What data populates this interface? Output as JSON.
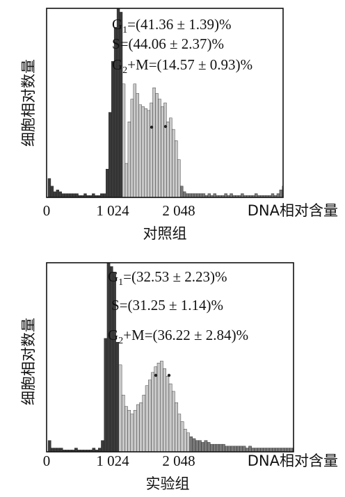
{
  "chart_data": [
    {
      "type": "histogram",
      "caption": "对照组",
      "ylabel": "细胞相对数量",
      "xlabel": "DNA相对含量",
      "xticks": [
        "0",
        "1 024",
        "2 048"
      ],
      "xtick_values": [
        0,
        1024,
        2048
      ],
      "xlim": [
        0,
        3500
      ],
      "ylim": [
        0,
        100
      ],
      "annotations": [
        {
          "phase": "G1",
          "value": "41.36 ± 1.39",
          "unit": "%"
        },
        {
          "phase": "S",
          "value": "44.06 ± 2.37",
          "unit": "%"
        },
        {
          "phase": "G2+M",
          "value": "14.57 ± 0.93",
          "unit": "%"
        }
      ],
      "bin_width": 40,
      "bins_x": [
        40,
        80,
        120,
        160,
        200,
        240,
        280,
        320,
        360,
        400,
        440,
        480,
        520,
        560,
        600,
        640,
        680,
        720,
        760,
        800,
        840,
        880,
        920,
        960,
        1000,
        1040,
        1080,
        1120,
        1160,
        1200,
        1240,
        1280,
        1320,
        1360,
        1400,
        1440,
        1480,
        1520,
        1560,
        1600,
        1640,
        1680,
        1720,
        1760,
        1800,
        1840,
        1880,
        1920,
        1960,
        2000,
        2040,
        2080,
        2120,
        2160,
        2200,
        2240,
        2280,
        2320,
        2360,
        2400,
        2440,
        2480,
        2520,
        2560,
        2600,
        2640,
        2680,
        2720,
        2760,
        2800,
        2840,
        2880,
        2920,
        2960,
        3000,
        3040,
        3080,
        3120,
        3160,
        3200,
        3240,
        3280,
        3320,
        3360,
        3400,
        3440
      ],
      "phase_x": [
        [
          0,
          1100
        ],
        [
          1100,
          1950
        ],
        [
          1950,
          3500
        ]
      ],
      "counts": [
        10,
        6,
        3,
        4,
        3,
        2,
        2,
        2,
        2,
        2,
        2,
        1,
        1,
        2,
        1,
        1,
        2,
        1,
        1,
        2,
        2,
        15,
        45,
        72,
        90,
        100,
        98,
        60,
        18,
        40,
        52,
        60,
        55,
        49,
        48,
        47,
        46,
        50,
        58,
        55,
        52,
        48,
        50,
        40,
        42,
        36,
        30,
        20,
        6,
        3,
        2,
        2,
        2,
        2,
        2,
        2,
        2,
        1,
        2,
        1,
        2,
        1,
        1,
        1,
        2,
        1,
        2,
        1,
        1,
        1,
        2,
        1,
        1,
        1,
        1,
        2,
        1,
        1,
        1,
        1,
        1,
        2,
        1,
        2,
        4,
        6
      ],
      "colors": {
        "G1": "#3b3b3b",
        "S": "#c9c9c9",
        "G2M": "#7a7a7a"
      }
    },
    {
      "type": "histogram",
      "caption": "实验组",
      "ylabel": "细胞相对数量",
      "xlabel": "DNA相对含量",
      "xticks": [
        "0",
        "1 024",
        "2 048"
      ],
      "xtick_values": [
        0,
        1024,
        2048
      ],
      "xlim": [
        0,
        3500
      ],
      "ylim": [
        0,
        100
      ],
      "annotations": [
        {
          "phase": "G1",
          "value": "32.53 ± 2.23",
          "unit": "%"
        },
        {
          "phase": "S",
          "value": "31.25 ± 1.14",
          "unit": "%"
        },
        {
          "phase": "G2+M",
          "value": "36.22 ± 2.84",
          "unit": "%"
        }
      ],
      "bin_width": 40,
      "bins_x": [
        40,
        80,
        120,
        160,
        200,
        240,
        280,
        320,
        360,
        400,
        440,
        480,
        520,
        560,
        600,
        640,
        680,
        720,
        760,
        800,
        840,
        880,
        920,
        960,
        1000,
        1040,
        1080,
        1120,
        1160,
        1200,
        1240,
        1280,
        1320,
        1360,
        1400,
        1440,
        1480,
        1520,
        1560,
        1600,
        1640,
        1680,
        1720,
        1760,
        1800,
        1840,
        1880,
        1920,
        1960,
        2000,
        2040,
        2080,
        2120,
        2160,
        2200,
        2240,
        2280,
        2320,
        2360,
        2400,
        2440,
        2480,
        2520,
        2560,
        2600,
        2640,
        2680,
        2720,
        2760,
        2800,
        2840,
        2880,
        2920,
        2960,
        3000,
        3040,
        3080,
        3120,
        3160,
        3200,
        3240,
        3280,
        3320,
        3360,
        3400,
        3440
      ],
      "phase_x": [
        [
          0,
          1000
        ],
        [
          1000,
          1950
        ],
        [
          1950,
          3500
        ]
      ],
      "counts": [
        6,
        2,
        2,
        2,
        2,
        1,
        1,
        1,
        1,
        2,
        1,
        1,
        1,
        1,
        1,
        2,
        1,
        2,
        6,
        60,
        100,
        98,
        95,
        58,
        46,
        30,
        24,
        22,
        20,
        22,
        25,
        26,
        30,
        35,
        38,
        42,
        45,
        47,
        48,
        44,
        40,
        36,
        32,
        26,
        20,
        16,
        12,
        10,
        8,
        7,
        6,
        6,
        5,
        6,
        5,
        4,
        4,
        4,
        4,
        4,
        3,
        3,
        3,
        3,
        3,
        3,
        3,
        2,
        3,
        2,
        2,
        2,
        2,
        2,
        2,
        2,
        2,
        2,
        2,
        2,
        2,
        2,
        2,
        2,
        14,
        6
      ],
      "colors": {
        "G1": "#3b3b3b",
        "S": "#c9c9c9",
        "G2M": "#7a7a7a"
      }
    }
  ]
}
